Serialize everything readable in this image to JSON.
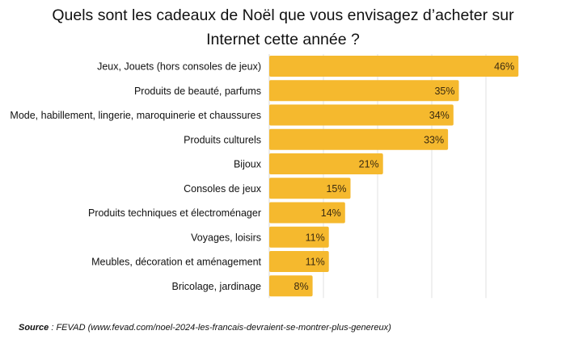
{
  "chart_data": {
    "type": "bar",
    "orientation": "horizontal",
    "title": "Quels sont les cadeaux de Noël que vous envisagez d’acheter sur Internet cette année ?",
    "title_lines": [
      "Quels sont les cadeaux de Noël que vous envisagez d’acheter sur",
      "Internet cette année ?"
    ],
    "xlabel": "",
    "ylabel": "",
    "xlim": [
      0,
      46
    ],
    "gridlines_at": [
      10,
      20,
      30,
      40
    ],
    "grid": true,
    "legend": "none",
    "value_suffix": "%",
    "bar_color": "#F5B92E",
    "categories": [
      "Jeux, Jouets (hors consoles de jeux)",
      "Produits de beauté, parfums",
      "Mode, habillement, lingerie, maroquinerie et chaussures",
      "Produits culturels",
      "Bijoux",
      "Consoles de jeux",
      "Produits techniques et électroménager",
      "Voyages, loisirs",
      "Meubles, décoration et aménagement",
      "Bricolage, jardinage"
    ],
    "values": [
      46,
      35,
      34,
      33,
      21,
      15,
      14,
      11,
      11,
      8
    ],
    "value_labels": [
      "46%",
      "35%",
      "34%",
      "33%",
      "21%",
      "15%",
      "14%",
      "11%",
      "11%",
      "8%"
    ]
  },
  "source": {
    "label": "Source",
    "text": " : FEVAD (www.fevad.com/noel-2024-les-francais-devraient-se-montrer-plus-genereux)"
  }
}
